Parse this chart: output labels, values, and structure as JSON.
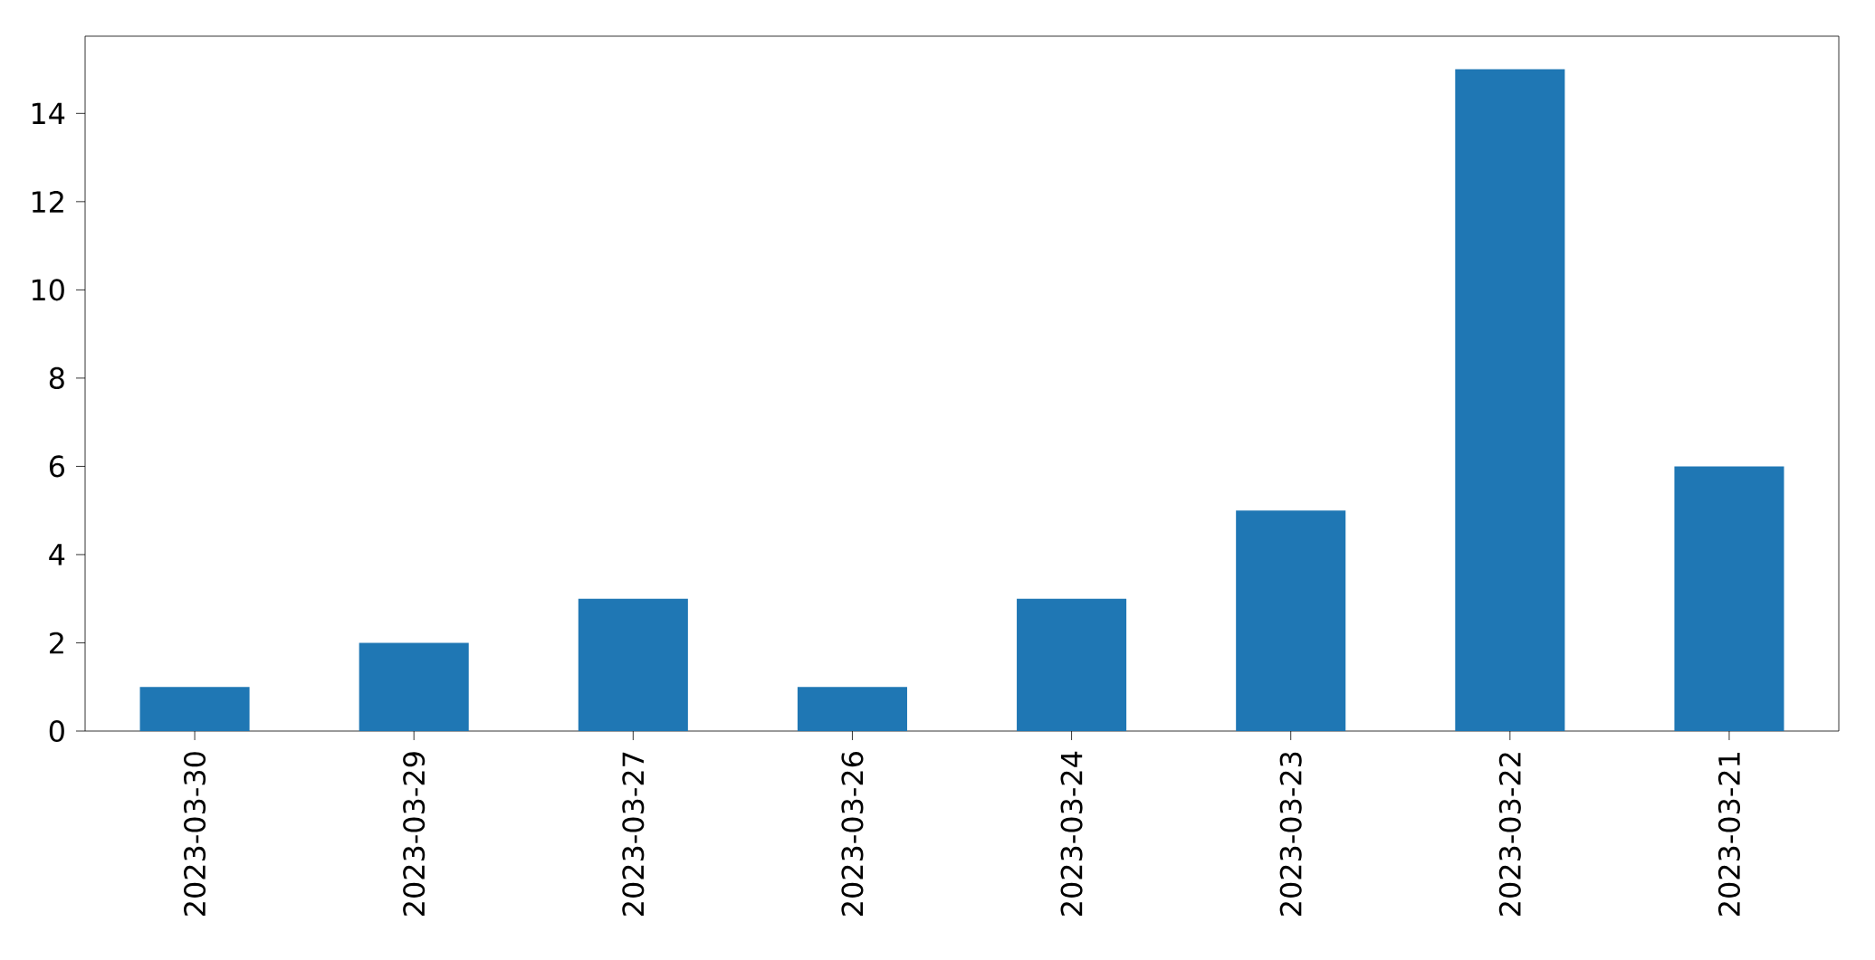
{
  "chart_data": {
    "type": "bar",
    "categories": [
      "2023-03-30",
      "2023-03-29",
      "2023-03-27",
      "2023-03-26",
      "2023-03-24",
      "2023-03-23",
      "2023-03-22",
      "2023-03-21"
    ],
    "values": [
      1,
      2,
      3,
      1,
      3,
      5,
      15,
      6
    ],
    "color": "#1f77b4",
    "ylim": [
      0,
      15.75
    ],
    "yticks": [
      0,
      2,
      4,
      6,
      8,
      10,
      12,
      14
    ]
  }
}
